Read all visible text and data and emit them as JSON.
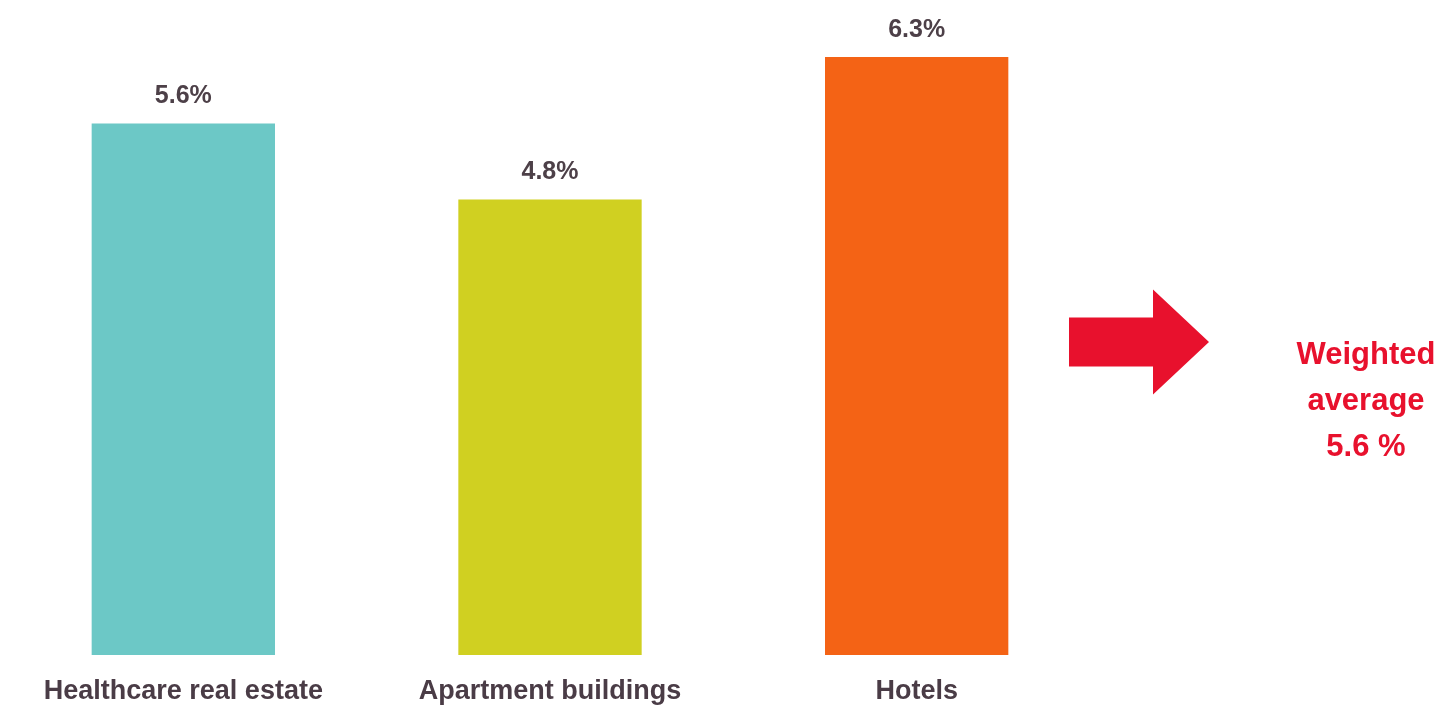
{
  "chart_data": {
    "type": "bar",
    "categories": [
      "Healthcare real estate",
      "Apartment buildings",
      "Hotels"
    ],
    "values": [
      5.6,
      4.8,
      6.3
    ],
    "colors": [
      "#6cc8c6",
      "#d0d021",
      "#f46315"
    ],
    "value_labels": [
      "5.6%",
      "4.8%",
      "6.3%"
    ],
    "annotations": [
      "Weighted\naverage\n5.6 %"
    ]
  }
}
